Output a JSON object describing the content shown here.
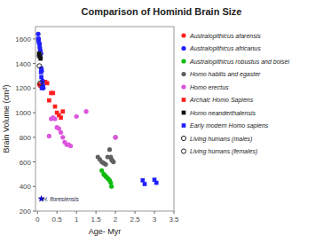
{
  "chart_data": {
    "type": "scatter",
    "title": "Comparison of Hominid Brain Size",
    "x_label": "Age- Myr",
    "y_label": "Brain Volume (cm³)",
    "xlim": [
      -0.05,
      3.5
    ],
    "ylim": [
      200,
      1700
    ],
    "xticks": [
      0,
      0.5,
      1,
      1.5,
      2,
      2.5,
      3,
      3.5
    ],
    "yticks": [
      200,
      400,
      600,
      800,
      1000,
      1200,
      1400,
      1600
    ],
    "grid": false,
    "legend": "right",
    "series": [
      {
        "name": "Australopithicus afarensis",
        "color": "#ff2020",
        "marker": "circle",
        "x": [
          0.05,
          0.07
        ],
        "values": [
          1230,
          1220
        ]
      },
      {
        "name": "Australopithicus africanus",
        "color": "#2020ff",
        "marker": "circle",
        "x": [
          0.02,
          0.03,
          0.05,
          0.06,
          0.07,
          0.08,
          0.09,
          0.1,
          0.11,
          0.13,
          0.14,
          0.15
        ],
        "values": [
          1640,
          1600,
          1560,
          1530,
          1510,
          1490,
          1480,
          1360,
          1340,
          1260,
          1220,
          1200
        ]
      },
      {
        "name": "Australopithicus robustus and boisei",
        "color": "#10bb10",
        "marker": "circle",
        "x": [
          1.65,
          1.7,
          1.73,
          1.76,
          1.79,
          1.82,
          1.85,
          1.88,
          1.9
        ],
        "values": [
          530,
          500,
          490,
          480,
          470,
          460,
          450,
          430,
          400
        ]
      },
      {
        "name": "Homo habilis and egaster",
        "color": "#606060",
        "marker": "circle",
        "x": [
          0.04,
          0.06,
          0.08,
          1.55,
          1.6,
          1.65,
          1.7,
          1.75,
          1.8,
          1.85,
          1.88,
          1.9,
          1.92,
          1.95,
          2.0
        ],
        "values": [
          1460,
          1480,
          1450,
          640,
          620,
          600,
          590,
          580,
          640,
          700,
          640,
          620,
          610,
          600,
          800
        ]
      },
      {
        "name": "Homo erectus",
        "color": "#dd55dd",
        "marker": "circle",
        "x": [
          0.3,
          0.35,
          0.4,
          0.45,
          0.5,
          0.55,
          0.6,
          0.65,
          0.7,
          0.75,
          0.8,
          0.85,
          1.0,
          1.25,
          2.0
        ],
        "values": [
          810,
          950,
          960,
          950,
          880,
          870,
          840,
          800,
          760,
          740,
          740,
          730,
          970,
          1010,
          800
        ]
      },
      {
        "name": "Archaic Homo Sapiens",
        "color": "#ff2020",
        "marker": "square",
        "x": [
          0.2,
          0.25,
          0.3,
          0.35,
          0.4,
          0.45,
          0.5,
          0.55,
          0.6,
          0.65
        ],
        "values": [
          1250,
          1240,
          1100,
          1160,
          1160,
          1050,
          1000,
          980,
          960,
          1010
        ]
      },
      {
        "name": "Homo neanderthalensis",
        "color": "#111111",
        "marker": "square",
        "x": [
          0.04,
          0.06,
          0.08
        ],
        "values": [
          1480,
          1460,
          1440
        ]
      },
      {
        "name": "Early modern Homo sapiens",
        "color": "#2020ff",
        "marker": "square",
        "x": [
          0.02,
          0.03,
          0.05,
          0.09,
          0.1,
          0.11,
          0.13,
          2.7,
          2.75,
          3.0,
          3.05
        ],
        "values": [
          1600,
          1580,
          1560,
          1330,
          1290,
          1200,
          1250,
          450,
          420,
          455,
          430
        ]
      },
      {
        "name": "Living humans (males)",
        "color": "#222222",
        "marker": "open-circle",
        "x": [
          0.05
        ],
        "values": [
          1380
        ]
      },
      {
        "name": "Living humans (females)",
        "color": "#222222",
        "marker": "open-circle",
        "x": [
          0.07
        ],
        "values": [
          1240
        ]
      },
      {
        "color": "#0000cc",
        "marker": "star",
        "x": [
          0.1
        ],
        "values": [
          300
        ]
      }
    ],
    "annotations": [
      {
        "text": "H. floresiensis",
        "x": 0.13,
        "y": 295
      }
    ]
  }
}
